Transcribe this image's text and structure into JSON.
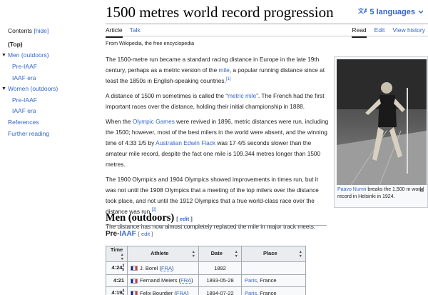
{
  "title": "1500 metres world record progression",
  "languages_label": "5 languages",
  "tabs_left": [
    "Article",
    "Talk"
  ],
  "tabs_right": [
    "Read",
    "Edit",
    "View history"
  ],
  "tagline": "From Wikipedia, the free encyclopedia",
  "toc": {
    "title": "Contents",
    "hide": "[hide]",
    "items": [
      {
        "label": "(Top)",
        "level": 0,
        "current": true
      },
      {
        "label": "Men (outdoors)",
        "level": 0,
        "toggle": true
      },
      {
        "label": "Pre-IAAF",
        "level": 1
      },
      {
        "label": "IAAF era",
        "level": 1
      },
      {
        "label": "Women (outdoors)",
        "level": 0,
        "toggle": true
      },
      {
        "label": "Pre-IAAF",
        "level": 1
      },
      {
        "label": "IAAF era",
        "level": 1
      },
      {
        "label": "References",
        "level": 0
      },
      {
        "label": "Further reading",
        "level": 0
      }
    ]
  },
  "paragraphs": [
    {
      "a": "The 1500-metre run became a standard racing distance in Europe in the late 19th century, perhaps as a metric version of the ",
      "link": "mile",
      "b": ", a popular running distance since at least the 1850s in English-speaking countries.",
      "ref": "[1]"
    },
    {
      "a": "A distance of 1500 m sometimes is called the “",
      "link": "metric mile",
      "b": "”. The French had the first important races over the distance, holding their initial championship in 1888.",
      "ref": ""
    },
    {
      "a": "When the ",
      "link": "Olympic Games",
      "b": " were revived in 1896, metric distances were run, including the 1500; however, most of the best milers in the world were absent, and the winning time of 4:33 1/5 by ",
      "link2": "Australian Edwin Flack",
      "c": " was 17 4/5 seconds slower than the amateur mile record, despite the fact one mile is 109.344 metres longer than 1500 metres.",
      "ref": ""
    },
    {
      "a": "The 1900 Olympics and 1904 Olympics showed improvements in times run, but it was not until the 1908 Olympics that a meeting of the top milers over the distance took place, and not until the 1912 Olympics that a true world-class race over the distance was run.",
      "ref": "[2]"
    },
    {
      "a": "The distance has now almost completely replaced the mile in major track meets.",
      "ref": ""
    }
  ],
  "image": {
    "caption_link": "Paavo Nurmi",
    "caption_text": " breaks the 1,500 m world record in Helsinki in 1924."
  },
  "section_men": "Men (outdoors)",
  "subsection_pre": "Pre-",
  "subsection_iaaf": "IAAF",
  "edit_label": "[ edit ]",
  "table": {
    "headers": [
      "Time",
      "Athlete",
      "Date",
      "Place"
    ],
    "rows": [
      {
        "time": "4:24",
        "sup": "3",
        "sub": "5",
        "athlete": "J. Borel",
        "nat": "FRA",
        "date": "1892",
        "place": "",
        "country": ""
      },
      {
        "time": "4:21",
        "sup": "",
        "sub": "",
        "athlete": "Fernand Meiers",
        "nat": "FRA",
        "date": "1893-05-28",
        "place": "Paris",
        "country": ", France"
      },
      {
        "time": "4:19",
        "sup": "4",
        "sub": "5",
        "athlete": "Felix Bourdier",
        "nat": "FRA",
        "date": "1894-07-22",
        "place": "Paris",
        "country": ", France"
      }
    ]
  },
  "colors": {
    "link": "#3366cc",
    "text": "#202122"
  }
}
